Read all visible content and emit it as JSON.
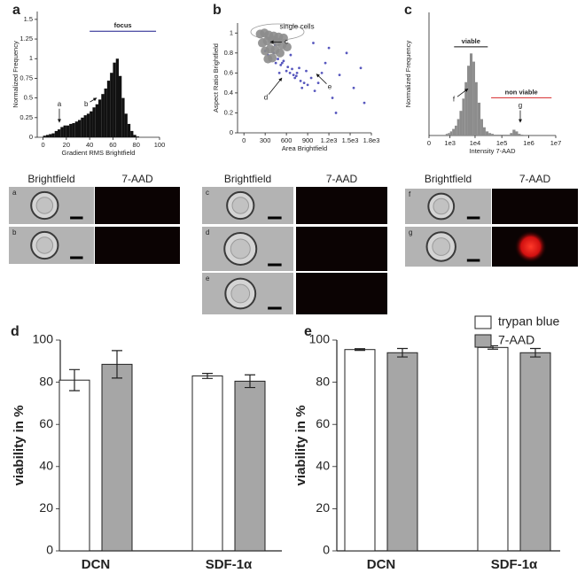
{
  "chart_data": [
    {
      "type": "histogram",
      "label": "a",
      "xlabel": "Gradient RMS Brightfield",
      "ylabel": "Normalized Frequency",
      "color": "#111111",
      "bins": [
        0,
        2.5,
        5,
        7.5,
        10,
        12.5,
        15,
        17.5,
        20,
        22.5,
        25,
        27.5,
        30,
        32.5,
        35,
        37.5,
        40,
        42.5,
        45,
        47.5,
        50,
        52.5,
        55,
        57.5,
        60,
        62.5,
        65,
        67.5,
        70,
        72.5,
        75,
        77.5,
        80,
        82.5
      ],
      "values": [
        0.02,
        0.03,
        0.04,
        0.05,
        0.08,
        0.1,
        0.13,
        0.15,
        0.15,
        0.17,
        0.18,
        0.2,
        0.22,
        0.25,
        0.28,
        0.3,
        0.33,
        0.38,
        0.42,
        0.48,
        0.55,
        0.62,
        0.72,
        0.82,
        0.95,
        1.0,
        0.78,
        0.5,
        0.3,
        0.17,
        0.08,
        0.03,
        0.01
      ],
      "xlim": [
        -5,
        100
      ],
      "xticks": [
        0,
        20,
        40,
        60,
        80,
        100
      ],
      "ylim": [
        0,
        1.6
      ],
      "yticks": [
        0,
        0.25,
        0.5,
        0.75,
        1,
        1.25,
        1.5
      ],
      "annotations": [
        {
          "text": "focus",
          "x": [
            40,
            97
          ],
          "y": 1.35,
          "color": "#1a1a8c"
        },
        {
          "text": "a",
          "x": 14,
          "y": 0.42,
          "to": [
            14,
            0.19
          ]
        },
        {
          "text": "b",
          "x": 37,
          "y": 0.42,
          "to": [
            46,
            0.5
          ]
        }
      ]
    },
    {
      "type": "scatter",
      "label": "b",
      "xlabel": "Area Brightfield",
      "ylabel": "Aspect Ratio Brightfield",
      "series": [
        {
          "color": "#3b3bb3",
          "x": [
            380,
            450,
            520,
            600,
            650,
            700,
            720,
            750,
            800,
            850,
            560,
            620,
            680,
            740,
            900,
            950,
            1000,
            1050,
            1100,
            300,
            340,
            420,
            480,
            540,
            780,
            820,
            880,
            1150,
            1250,
            1350,
            1450,
            1550,
            1650,
            1700,
            1200,
            980,
            660,
            500,
            440,
            1300
          ],
          "y": [
            0.75,
            0.7,
            0.68,
            0.62,
            0.6,
            0.58,
            0.55,
            0.6,
            0.52,
            0.5,
            0.72,
            0.66,
            0.64,
            0.57,
            0.48,
            0.55,
            0.42,
            0.5,
            0.6,
            0.82,
            0.78,
            0.8,
            0.74,
            0.7,
            0.65,
            0.45,
            0.62,
            0.7,
            0.35,
            0.58,
            0.8,
            0.45,
            0.65,
            0.3,
            0.85,
            0.9,
            0.78,
            0.6,
            0.88,
            0.2
          ]
        },
        {
          "color": "#8c8c8c",
          "x": [
            230,
            290,
            350,
            420,
            490,
            560,
            260,
            330,
            400,
            470,
            540,
            610,
            300,
            370,
            440,
            510,
            400,
            340
          ],
          "y": [
            0.99,
            1.0,
            0.98,
            0.97,
            0.96,
            0.95,
            0.9,
            0.92,
            0.93,
            0.91,
            0.88,
            0.86,
            0.82,
            0.84,
            0.83,
            0.8,
            0.75,
            0.74
          ]
        }
      ],
      "xlim": [
        -90,
        1800
      ],
      "xticks": [
        0,
        300,
        600,
        900,
        {
          "value": 1200,
          "label": "1.2e3"
        },
        {
          "value": 1500,
          "label": "1.5e3"
        },
        {
          "value": 1800,
          "label": "1.8e3"
        }
      ],
      "ylim": [
        0,
        1.1
      ],
      "yticks": [
        0,
        0.2,
        0.4,
        0.6,
        0.8,
        1
      ],
      "annotations": [
        {
          "text": "single cells",
          "x": 749,
          "y": 1.06,
          "color": "#888888"
        },
        {
          "text": "c",
          "x": 598,
          "y": 0.91,
          "to": [
            373,
            0.91
          ]
        },
        {
          "text": "d",
          "x": 310,
          "y": 0.35,
          "to": [
            536,
            0.55
          ]
        },
        {
          "text": "e",
          "x": 1212,
          "y": 0.46,
          "to": [
            1024,
            0.59
          ]
        }
      ]
    },
    {
      "type": "histogram",
      "label": "c",
      "xlabel": "Intensity  7-AAD",
      "ylabel": "Normalized Frequency",
      "color": "#8c8c8c",
      "xscale": "log",
      "bins": [
        630,
        800,
        1000,
        1250,
        1600,
        2000,
        2500,
        3200,
        4000,
        5000,
        6300,
        8000,
        10000,
        12500,
        16000,
        20000,
        25000,
        32000,
        40000,
        50000,
        63000,
        80000,
        100000,
        125000,
        160000,
        200000,
        250000,
        320000,
        400000,
        500000,
        630000
      ],
      "values": [
        0.02,
        0.03,
        0.05,
        0.08,
        0.12,
        0.2,
        0.3,
        0.45,
        0.65,
        0.85,
        1.0,
        0.9,
        0.65,
        0.4,
        0.2,
        0.1,
        0.05,
        0.03,
        0.02,
        0.01,
        0.01,
        0.01,
        0.01,
        0.01,
        0.01,
        0.03,
        0.07,
        0.05,
        0.02,
        0.01
      ],
      "xlim": [
        0,
        10000000
      ],
      "xticks": [
        0,
        {
          "value": 1000,
          "label": "1e3"
        },
        {
          "value": 10000,
          "label": "1e4"
        },
        {
          "value": 100000,
          "label": "1e5"
        },
        {
          "value": 1000000,
          "label": "1e6"
        },
        {
          "value": 10000000,
          "label": "1e7"
        }
      ],
      "ylim": [
        0,
        1.5
      ],
      "annotations": [
        {
          "text": "viable",
          "x": [
            1500,
            30000
          ],
          "y": 1.08,
          "color": "#111111"
        },
        {
          "text": "non viable",
          "x": [
            40000,
            7000000
          ],
          "y": 0.46,
          "color": "#d62728"
        },
        {
          "text": "f",
          "x": 1463,
          "y": 0.44,
          "to": [
            5380,
            0.57
          ]
        },
        {
          "text": "g",
          "x": 484000,
          "y": 0.36,
          "to": [
            484000,
            0.16
          ]
        }
      ]
    },
    {
      "type": "bar",
      "label": "d",
      "ylabel": "viability in %",
      "categories": [
        "DCN",
        "SDF-1α"
      ],
      "series": [
        {
          "color": "#ffffff",
          "values": [
            81,
            83
          ],
          "errors": [
            5,
            1.2
          ]
        },
        {
          "color": "#a6a6a6",
          "values": [
            88.5,
            80.5
          ],
          "errors": [
            6.5,
            3
          ]
        }
      ],
      "ylim": [
        0,
        100
      ],
      "yticks": [
        0,
        20,
        40,
        60,
        80,
        100
      ]
    },
    {
      "type": "bar",
      "label": "e",
      "ylabel": "viability in %",
      "categories": [
        "DCN",
        "SDF-1α"
      ],
      "legend": "top-right",
      "series": [
        {
          "name": "trypan blue",
          "color": "#ffffff",
          "values": [
            95.5,
            96.5
          ],
          "errors": [
            0.4,
            0.8
          ]
        },
        {
          "name": "7-AAD",
          "color": "#a6a6a6",
          "values": [
            94,
            94
          ],
          "errors": [
            2,
            2
          ]
        }
      ],
      "ylim": [
        0,
        100
      ],
      "yticks": [
        0,
        20,
        40,
        60,
        80,
        100
      ]
    }
  ],
  "image_panels": [
    {
      "columns": [
        "Brightfield",
        "7-AAD"
      ],
      "rows": [
        "a",
        "b"
      ]
    },
    {
      "columns": [
        "Brightfield",
        "7-AAD"
      ],
      "rows": [
        "c",
        "d",
        "e"
      ]
    },
    {
      "columns": [
        "Brightfield",
        "7-AAD"
      ],
      "rows": [
        "f",
        "g"
      ]
    }
  ]
}
